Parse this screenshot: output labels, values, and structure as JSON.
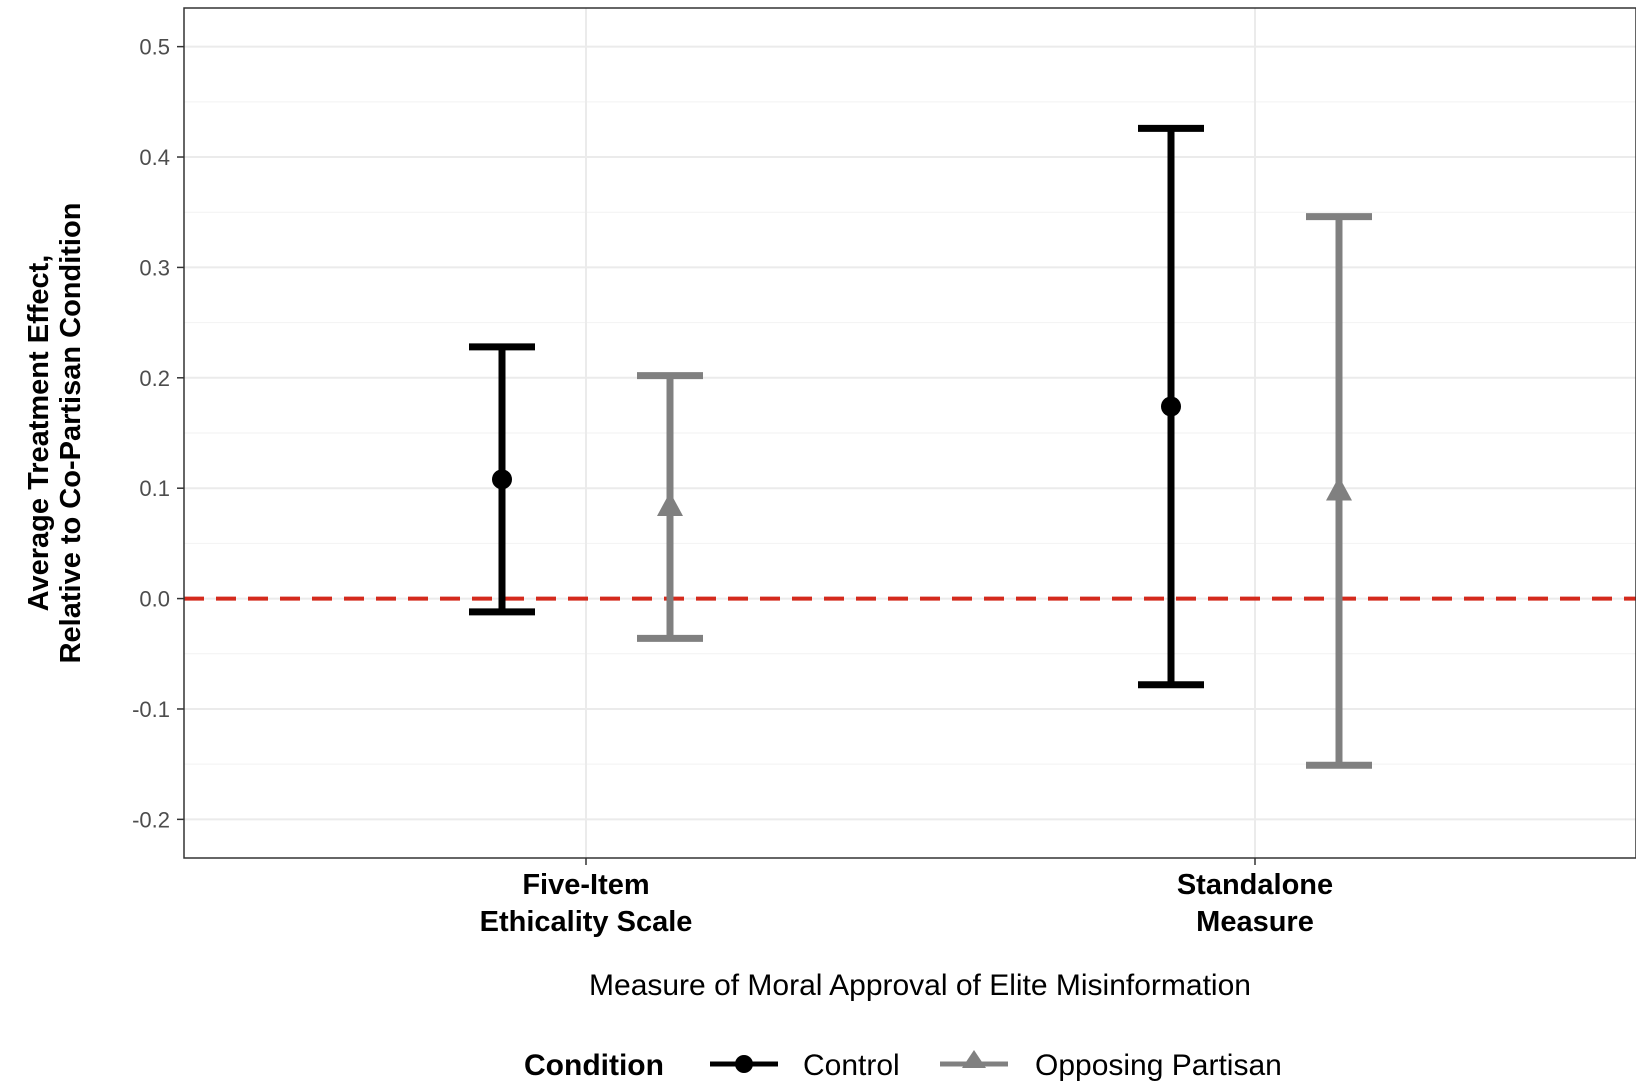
{
  "chart_data": {
    "type": "errorbar",
    "xlabel": "Measure of Moral Approval of Elite Misinformation",
    "ylabel_lines": [
      "Average Treatment Effect,",
      "Relative to Co-Partisan Condition"
    ],
    "categories": [
      [
        "Five-Item",
        "Ethicality Scale"
      ],
      [
        "Standalone",
        "Measure"
      ]
    ],
    "ylim": [
      -0.235,
      0.535
    ],
    "yticks": [
      -0.2,
      -0.1,
      0.0,
      0.1,
      0.2,
      0.3,
      0.4,
      0.5
    ],
    "ytick_labels": [
      "-0.2",
      "-0.1",
      "0.0",
      "0.1",
      "0.2",
      "0.3",
      "0.4",
      "0.5"
    ],
    "grid": true,
    "reference_line": {
      "y": 0.0,
      "color": "#d42a1c",
      "style": "dashed"
    },
    "legend": {
      "title": "Condition",
      "position": "bottom"
    },
    "series": [
      {
        "name": "Control",
        "color": "#000000",
        "marker": "circle",
        "estimates": [
          0.108,
          0.174
        ],
        "lower": [
          -0.012,
          -0.078
        ],
        "upper": [
          0.228,
          0.426
        ]
      },
      {
        "name": "Opposing Partisan",
        "color": "#808080",
        "marker": "triangle",
        "estimates": [
          0.083,
          0.097
        ],
        "lower": [
          -0.036,
          -0.151
        ],
        "upper": [
          0.202,
          0.346
        ]
      }
    ]
  }
}
